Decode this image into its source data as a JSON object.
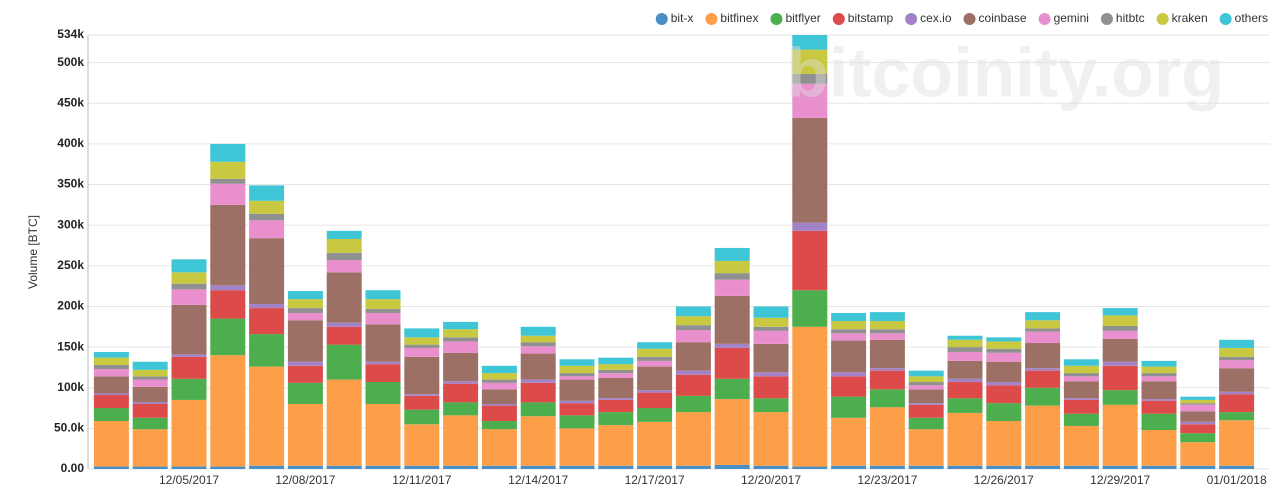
{
  "chart_data": {
    "type": "stacked_bar",
    "y_label": "Volume [BTC]",
    "annotation": "bitcoinity.org",
    "legend": "top-right",
    "grid": true,
    "categories": [
      null,
      null,
      "12/05/2017",
      null,
      null,
      "12/08/2017",
      null,
      null,
      "12/11/2017",
      null,
      null,
      "12/14/2017",
      null,
      null,
      "12/17/2017",
      null,
      null,
      "12/20/2017",
      null,
      null,
      "12/23/2017",
      null,
      null,
      "12/26/2017",
      null,
      null,
      "12/29/2017",
      null,
      null,
      "01/01/2018"
    ],
    "ylim": [
      0,
      534000
    ],
    "yticks": [
      {
        "value": 0,
        "label": "0.00"
      },
      {
        "value": 50000,
        "label": "50.0k"
      },
      {
        "value": 100000,
        "label": "100k"
      },
      {
        "value": 150000,
        "label": "150k"
      },
      {
        "value": 200000,
        "label": "200k"
      },
      {
        "value": 250000,
        "label": "250k"
      },
      {
        "value": 300000,
        "label": "300k"
      },
      {
        "value": 350000,
        "label": "350k"
      },
      {
        "value": 400000,
        "label": "400k"
      },
      {
        "value": 450000,
        "label": "450k"
      },
      {
        "value": 500000,
        "label": "500k"
      },
      {
        "value": 534000,
        "label": "534k"
      }
    ],
    "series": [
      {
        "name": "bit-x",
        "color": "#4a8fc4",
        "values": [
          3000,
          3000,
          3000,
          3000,
          4000,
          4000,
          4000,
          4000,
          4000,
          4000,
          4000,
          4000,
          4000,
          4000,
          4000,
          4000,
          5000,
          4000,
          3000,
          4000,
          4000,
          4000,
          4000,
          4000,
          4000,
          4000,
          4000,
          4000,
          4000,
          4000
        ]
      },
      {
        "name": "bitfinex",
        "color": "#fd9f48",
        "values": [
          56000,
          46000,
          82000,
          137000,
          122000,
          76000,
          106000,
          76000,
          51000,
          62000,
          45000,
          61000,
          46000,
          50000,
          54000,
          66000,
          81000,
          66000,
          172000,
          59000,
          72000,
          45000,
          65000,
          55000,
          74000,
          49000,
          75000,
          44000,
          29000,
          56000
        ]
      },
      {
        "name": "bitflyer",
        "color": "#4cae4c",
        "values": [
          16000,
          14000,
          26000,
          45000,
          40000,
          26000,
          43000,
          27000,
          18000,
          16000,
          10000,
          17000,
          16000,
          16000,
          17000,
          20000,
          25000,
          17000,
          45000,
          26000,
          22000,
          14000,
          18000,
          22000,
          22000,
          15000,
          18000,
          20000,
          11000,
          10000
        ]
      },
      {
        "name": "bitstamp",
        "color": "#dd4a4a",
        "values": [
          16000,
          17000,
          27000,
          35000,
          32000,
          21000,
          22000,
          22000,
          17000,
          23000,
          19000,
          24000,
          15000,
          15000,
          19000,
          26000,
          38000,
          27000,
          73000,
          25000,
          23000,
          16000,
          20000,
          22000,
          21000,
          17000,
          30000,
          16000,
          11000,
          22000
        ]
      },
      {
        "name": "cex.io",
        "color": "#a283c8",
        "values": [
          2000,
          2000,
          3000,
          6000,
          5000,
          5000,
          5000,
          3000,
          2000,
          3000,
          2000,
          4000,
          3000,
          2000,
          3000,
          5000,
          5000,
          5000,
          10000,
          5000,
          3000,
          2000,
          4000,
          4000,
          3000,
          2000,
          5000,
          2000,
          3000,
          3000
        ]
      },
      {
        "name": "coinbase",
        "color": "#9c7065",
        "values": [
          21000,
          19000,
          61000,
          99000,
          81000,
          51000,
          62000,
          46000,
          46000,
          35000,
          18000,
          32000,
          26000,
          25000,
          29000,
          35000,
          59000,
          35000,
          129000,
          39000,
          35000,
          17000,
          22000,
          25000,
          31000,
          21000,
          28000,
          22000,
          13000,
          29000
        ]
      },
      {
        "name": "gemini",
        "color": "#e98fcd",
        "values": [
          9000,
          9000,
          19000,
          26000,
          22000,
          9000,
          15000,
          14000,
          11000,
          14000,
          8000,
          9000,
          4000,
          6000,
          7000,
          15000,
          20000,
          16000,
          42000,
          9000,
          8000,
          5000,
          11000,
          11000,
          14000,
          6000,
          10000,
          6000,
          8000,
          10000
        ]
      },
      {
        "name": "hitbtc",
        "color": "#909090",
        "values": [
          5000,
          4000,
          7000,
          6000,
          8000,
          6000,
          9000,
          5000,
          4000,
          5000,
          4000,
          5000,
          4000,
          4000,
          5000,
          6000,
          8000,
          5000,
          12000,
          5000,
          5000,
          4000,
          6000,
          5000,
          4000,
          4000,
          6000,
          4000,
          2000,
          4000
        ]
      },
      {
        "name": "kraken",
        "color": "#c8c940",
        "values": [
          9000,
          8000,
          14000,
          21000,
          16000,
          11000,
          17000,
          12000,
          9000,
          10000,
          8000,
          8000,
          9000,
          7000,
          10000,
          11000,
          15000,
          11000,
          30000,
          10000,
          10000,
          7000,
          9000,
          9000,
          10000,
          9000,
          13000,
          8000,
          4000,
          11000
        ]
      },
      {
        "name": "others",
        "color": "#3fc6d6",
        "values": [
          7000,
          10000,
          16000,
          22000,
          19000,
          10000,
          10000,
          11000,
          11000,
          9000,
          9000,
          11000,
          8000,
          8000,
          8000,
          12000,
          16000,
          14000,
          18000,
          10000,
          11000,
          7000,
          5000,
          5000,
          10000,
          8000,
          9000,
          7000,
          4000,
          10000
        ]
      }
    ]
  }
}
